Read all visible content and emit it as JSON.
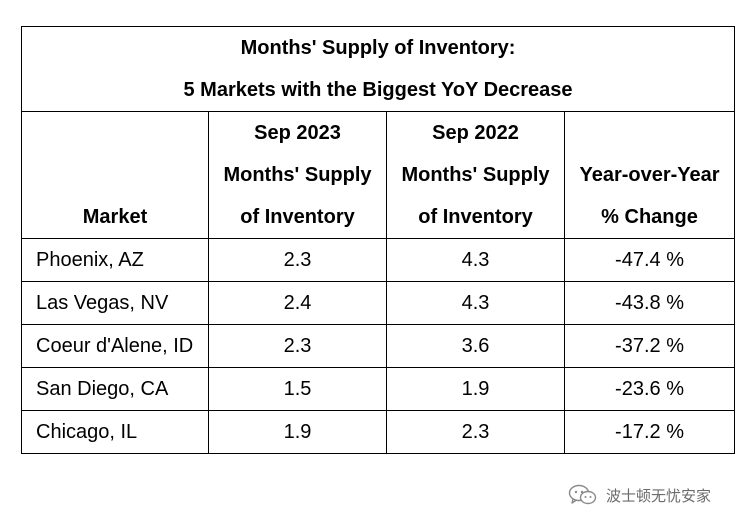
{
  "table": {
    "title_line1": "Months' Supply of Inventory:",
    "title_line2": "5 Markets with the Biggest YoY Decrease",
    "headers": [
      {
        "lines": [
          "Market"
        ]
      },
      {
        "lines": [
          "Sep 2023",
          "Months' Supply",
          "of Inventory"
        ]
      },
      {
        "lines": [
          "Sep 2022",
          "Months' Supply",
          "of Inventory"
        ]
      },
      {
        "lines": [
          "Year-over-Year",
          "% Change"
        ]
      }
    ],
    "rows": [
      {
        "market": "Phoenix, AZ",
        "sep2023": "2.3",
        "sep2022": "4.3",
        "change": "-47.4 %"
      },
      {
        "market": "Las Vegas, NV",
        "sep2023": "2.4",
        "sep2022": "4.3",
        "change": "-43.8 %"
      },
      {
        "market": "Coeur d'Alene, ID",
        "sep2023": "2.3",
        "sep2022": "3.6",
        "change": "-37.2 %"
      },
      {
        "market": "San Diego, CA",
        "sep2023": "1.5",
        "sep2022": "1.9",
        "change": "-23.6 %"
      },
      {
        "market": "Chicago, IL",
        "sep2023": "1.9",
        "sep2022": "2.3",
        "change": "-17.2 %"
      }
    ]
  },
  "watermark": {
    "text": "波士顿无忧安家",
    "icon": "wechat-icon"
  }
}
